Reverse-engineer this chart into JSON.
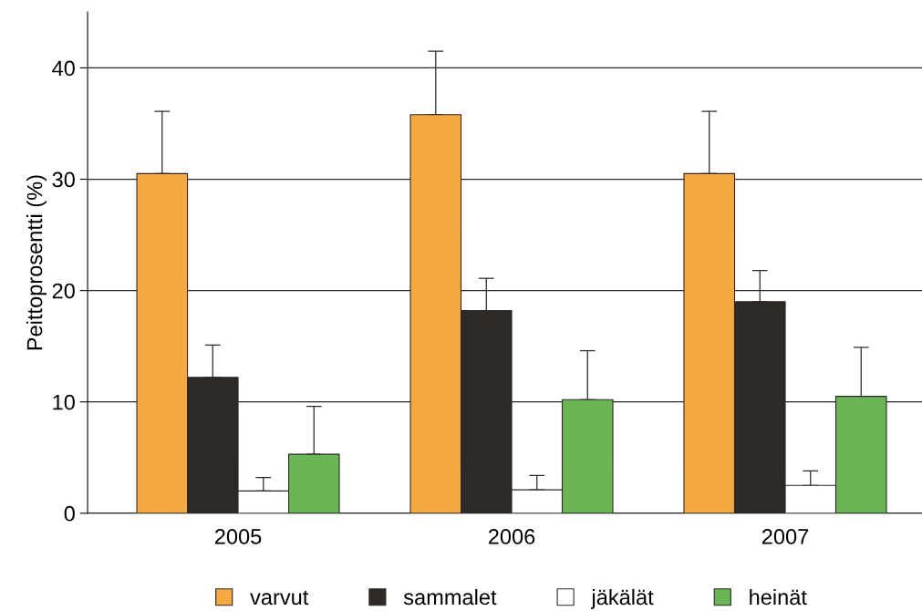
{
  "chart_data": {
    "type": "bar",
    "ylabel": "Peittoprosentti (%)",
    "categories": [
      "2005",
      "2006",
      "2007"
    ],
    "series": [
      {
        "name": "varvut",
        "color": "#f5a940",
        "values": [
          30.5,
          35.8,
          30.5
        ],
        "errors": [
          [
            30.5,
            36.1
          ],
          [
            35.8,
            41.5
          ],
          [
            30.5,
            36.1
          ]
        ]
      },
      {
        "name": "sammalet",
        "color": "#2d2926",
        "values": [
          12.2,
          18.2,
          19.0
        ],
        "errors": [
          [
            12.2,
            15.1
          ],
          [
            18.2,
            21.1
          ],
          [
            19.0,
            21.8
          ]
        ]
      },
      {
        "name": "jäkälät",
        "color": "#ffffff",
        "values": [
          2.0,
          2.1,
          2.5
        ],
        "errors": [
          [
            2.0,
            3.2
          ],
          [
            2.1,
            3.4
          ],
          [
            2.5,
            3.8
          ]
        ]
      },
      {
        "name": "heinät",
        "color": "#6ab556",
        "values": [
          5.3,
          10.2,
          10.5
        ],
        "errors": [
          [
            5.3,
            9.6
          ],
          [
            10.2,
            14.6
          ],
          [
            10.5,
            14.9
          ]
        ]
      }
    ],
    "ylim": [
      0,
      45
    ],
    "yticks": [
      0,
      10,
      20,
      30,
      40
    ],
    "grid": "y",
    "legend": "bottom",
    "marker": "square"
  }
}
